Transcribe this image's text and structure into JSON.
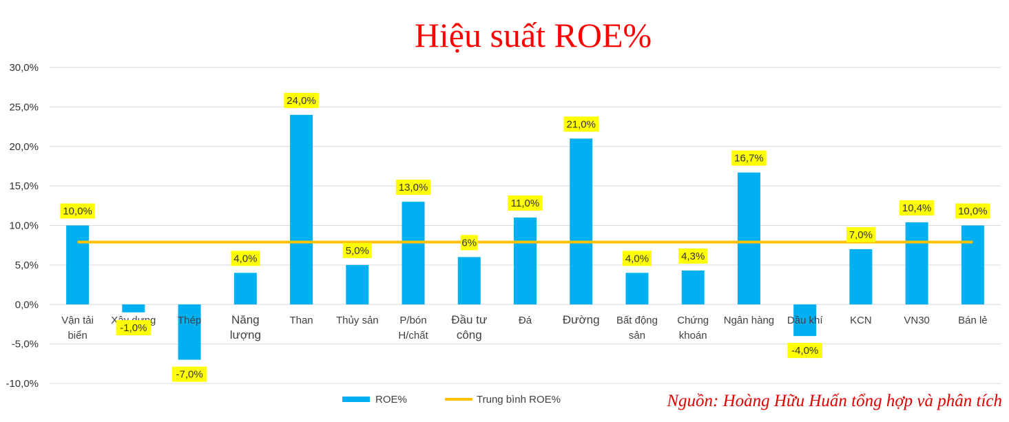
{
  "chart_data": {
    "type": "bar",
    "title": "Hiệu suất ROE%",
    "categories": [
      [
        "Vận tải",
        "biển"
      ],
      [
        "Xây dựng"
      ],
      [
        "Thép"
      ],
      [
        "Năng",
        "lượng"
      ],
      [
        "Than"
      ],
      [
        "Thủy sản"
      ],
      [
        "P/bón",
        "H/chất"
      ],
      [
        "Đầu tư",
        "công"
      ],
      [
        "Đá"
      ],
      [
        "Đường"
      ],
      [
        "Bất động",
        "sản"
      ],
      [
        "Chứng",
        "khoán"
      ],
      [
        "Ngân hàng"
      ],
      [
        "Dầu khí"
      ],
      [
        "KCN"
      ],
      [
        "VN30"
      ],
      [
        "Bán lẻ"
      ]
    ],
    "series": [
      {
        "name": "ROE%",
        "color": "#00b0f0",
        "values": [
          10.0,
          -1.0,
          -7.0,
          4.0,
          24.0,
          5.0,
          13.0,
          6.0,
          11.0,
          21.0,
          4.0,
          4.3,
          16.7,
          -4.0,
          7.0,
          10.4,
          10.0
        ],
        "labels": [
          "10,0%",
          "-1,0%",
          "-7,0%",
          "4,0%",
          "24,0%",
          "5,0%",
          "13,0%",
          "6%",
          "11,0%",
          "21,0%",
          "4,0%",
          "4,3%",
          "16,7%",
          "-4,0%",
          "7,0%",
          "10,4%",
          "10,0%"
        ]
      },
      {
        "name": "Trung bình ROE%",
        "type": "line",
        "color": "#ffc000",
        "value": 7.9
      }
    ],
    "y_ticks": [
      30,
      25,
      20,
      15,
      10,
      5,
      0,
      -5,
      -10
    ],
    "y_tick_labels": [
      "30,0%",
      "25,0%",
      "20,0%",
      "15,0%",
      "10,0%",
      "5,0%",
      "0,0%",
      "-5,0%",
      "-10,0%"
    ],
    "ylim": [
      -10,
      30
    ],
    "grid": true,
    "legend": "bottom",
    "label_highlight_color": "#ffff00"
  },
  "source_note": "Nguồn: Hoàng Hữu Huấn tổng hợp và phân tích"
}
